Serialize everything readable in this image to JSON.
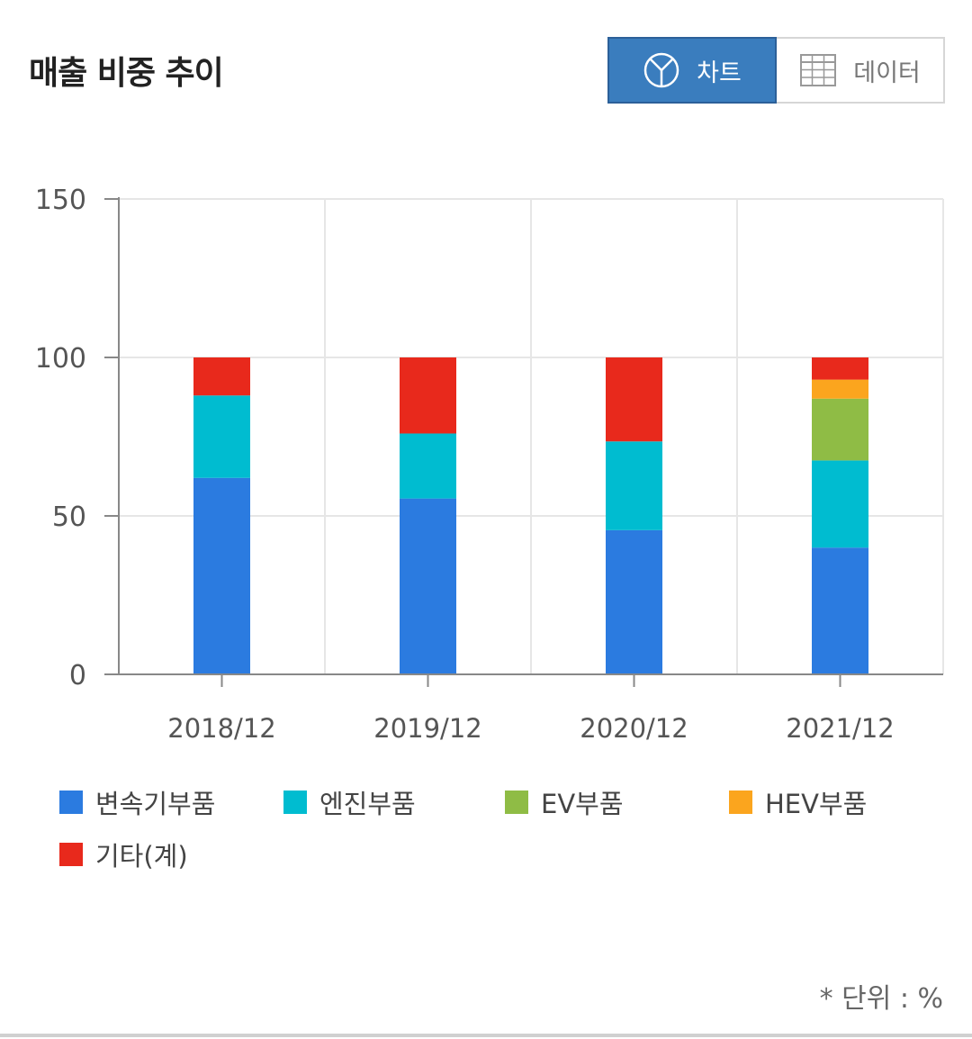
{
  "header": {
    "title": "매출 비중 추이",
    "toggle": {
      "chart_label": "차트",
      "chart_icon": "pie-chart-icon",
      "data_label": "데이터",
      "data_icon": "table-grid-icon",
      "active": "chart"
    }
  },
  "chart_data": {
    "type": "bar",
    "stacked": true,
    "categories": [
      "2018/12",
      "2019/12",
      "2020/12",
      "2021/12"
    ],
    "series": [
      {
        "name": "변속기부품",
        "color": "#2b7be0",
        "values": [
          62,
          55.5,
          45.5,
          40
        ]
      },
      {
        "name": "엔진부품",
        "color": "#00bcd0",
        "values": [
          26,
          20.5,
          28,
          27.5
        ]
      },
      {
        "name": "EV부품",
        "color": "#8fbc45",
        "values": [
          0,
          0,
          0,
          19.5
        ]
      },
      {
        "name": "HEV부품",
        "color": "#fba51e",
        "values": [
          0,
          0,
          0,
          6
        ]
      },
      {
        "name": "기타(계)",
        "color": "#e8291c",
        "values": [
          12,
          24,
          26.5,
          7
        ]
      }
    ],
    "ylim": [
      0,
      150
    ],
    "yticks": [
      0,
      50,
      100,
      150
    ],
    "grid": true,
    "legend_position": "bottom",
    "xlabel": "",
    "ylabel": ""
  },
  "footer": {
    "unit_note": "* 단위 : %"
  }
}
